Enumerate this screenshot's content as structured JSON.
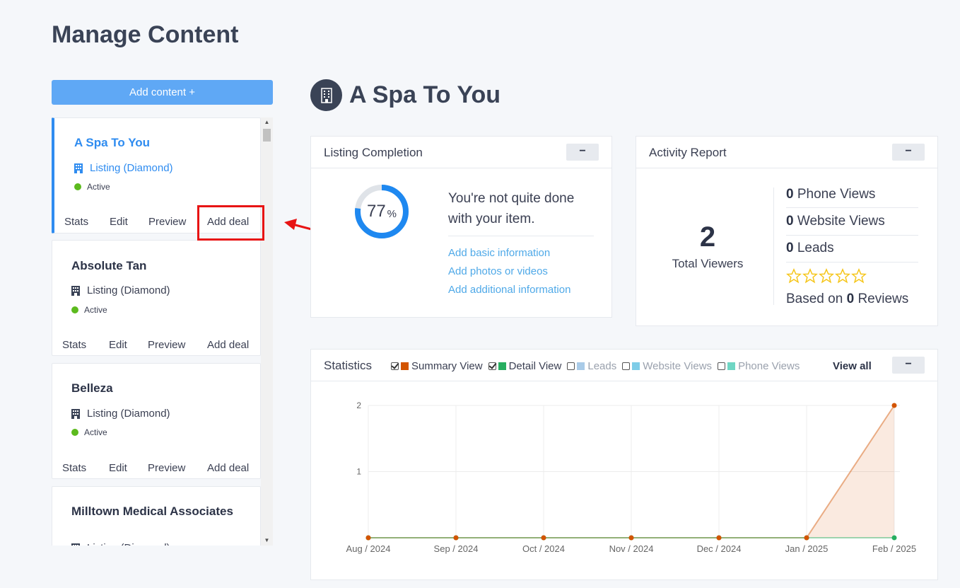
{
  "page": {
    "title": "Manage Content"
  },
  "sidebar": {
    "add_button": "Add content +",
    "cards": [
      {
        "title": "A Spa To You",
        "type": "Listing (Diamond)",
        "status": "Active",
        "actions": [
          "Stats",
          "Edit",
          "Preview",
          "Add deal"
        ],
        "selected": true
      },
      {
        "title": "Absolute Tan",
        "type": "Listing (Diamond)",
        "status": "Active",
        "actions": [
          "Stats",
          "Edit",
          "Preview",
          "Add deal"
        ]
      },
      {
        "title": "Belleza",
        "type": "Listing (Diamond)",
        "status": "Active",
        "actions": [
          "Stats",
          "Edit",
          "Preview",
          "Add deal"
        ]
      },
      {
        "title": "Milltown Medical Associates",
        "type": "Listing (Diamond)"
      }
    ]
  },
  "listing": {
    "name": "A Spa To You",
    "icon": "building-icon"
  },
  "completion": {
    "title": "Listing Completion",
    "collapse": "−",
    "percent": 77,
    "percent_value": "77",
    "percent_sign": "%",
    "message": "You're not quite done with your item.",
    "links": [
      "Add basic information",
      "Add photos or videos",
      "Add additional information"
    ],
    "ring_color": "#1e88f0",
    "track_color": "#dfe3e8"
  },
  "activity": {
    "title": "Activity Report",
    "collapse": "−",
    "total_viewers": "2",
    "total_label": "Total Viewers",
    "phone_views": "0",
    "phone_label": "Phone Views",
    "website_views": "0",
    "website_label": "Website Views",
    "leads": "0",
    "leads_label": "Leads",
    "rating_stars": 0,
    "reviews_prefix": "Based on",
    "reviews_count": "0",
    "reviews_suffix": "Reviews",
    "star_color": "#f5c518"
  },
  "statistics": {
    "title": "Statistics",
    "collapse": "−",
    "view_all": "View all",
    "legend": [
      {
        "label": "Summary View",
        "checked": true,
        "color": "#d35400"
      },
      {
        "label": "Detail View",
        "checked": true,
        "color": "#27ae60"
      },
      {
        "label": "Leads",
        "checked": false,
        "color": "#a9cbe8"
      },
      {
        "label": "Website Views",
        "checked": false,
        "color": "#7fcde8"
      },
      {
        "label": "Phone Views",
        "checked": false,
        "color": "#6fd6c4"
      }
    ]
  },
  "chart_data": {
    "type": "area",
    "categories": [
      "Aug / 2024",
      "Sep / 2024",
      "Oct / 2024",
      "Nov / 2024",
      "Dec / 2024",
      "Jan / 2025",
      "Feb / 2025"
    ],
    "series": [
      {
        "name": "Summary View",
        "values": [
          0,
          0,
          0,
          0,
          0,
          0,
          2
        ],
        "color": "#d35400"
      },
      {
        "name": "Detail View",
        "values": [
          0,
          0,
          0,
          0,
          0,
          0,
          0
        ],
        "color": "#27ae60"
      }
    ],
    "yticks": [
      "1",
      "2"
    ],
    "ylim": [
      0,
      2
    ],
    "grid": true
  }
}
